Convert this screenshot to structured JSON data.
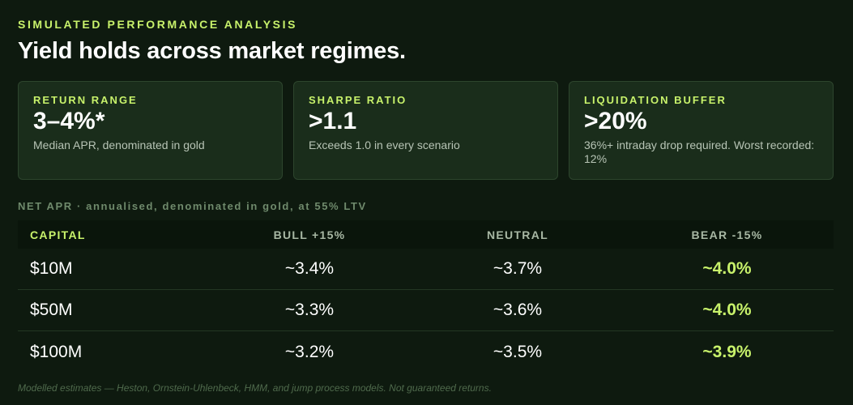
{
  "header": {
    "eyebrow": "SIMULATED PERFORMANCE ANALYSIS",
    "title": "Yield holds across market regimes."
  },
  "cards": [
    {
      "label": "RETURN RANGE",
      "value": "3–4%*",
      "desc": "Median APR, denominated in gold"
    },
    {
      "label": "SHARPE RATIO",
      "value": ">1.1",
      "desc": "Exceeds 1.0 in every scenario"
    },
    {
      "label": "LIQUIDATION BUFFER",
      "value": ">20%",
      "desc": "36%+ intraday drop required. Worst recorded: 12%"
    }
  ],
  "table": {
    "caption": "NET APR · annualised, denominated in gold, at 55% LTV",
    "headers": [
      "CAPITAL",
      "BULL +15%",
      "NEUTRAL",
      "BEAR -15%"
    ],
    "rows": [
      [
        "$10M",
        "~3.4%",
        "~3.7%",
        "~4.0%"
      ],
      [
        "$50M",
        "~3.3%",
        "~3.6%",
        "~4.0%"
      ],
      [
        "$100M",
        "~3.2%",
        "~3.5%",
        "~3.9%"
      ]
    ]
  },
  "footnote": "Modelled estimates — Heston, Ornstein-Uhlenbeck, HMM, and jump process models. Not guaranteed returns.",
  "colors": {
    "accent": "#c8f26b",
    "background": "#0e1a0f",
    "card": "#1a2d1b"
  }
}
